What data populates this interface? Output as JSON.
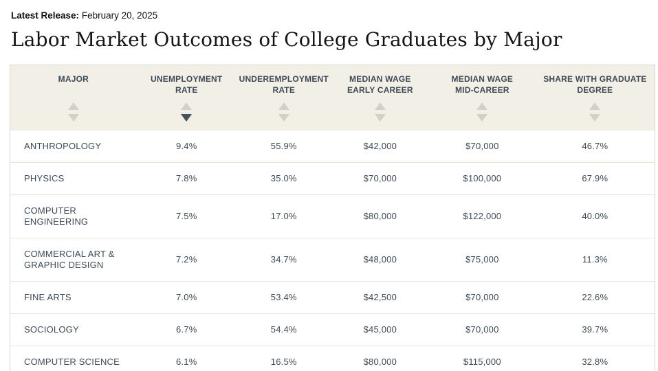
{
  "meta": {
    "latest_release_label": "Latest Release:",
    "latest_release_date": "February 20, 2025"
  },
  "page_title": "Labor Market Outcomes of College Graduates by Major",
  "table": {
    "columns": [
      {
        "label": "MAJOR",
        "sort": "none"
      },
      {
        "label": "UNEMPLOYMENT\nRATE",
        "sort": "desc"
      },
      {
        "label": "UNDEREMPLOYMENT\nRATE",
        "sort": "none"
      },
      {
        "label": "MEDIAN WAGE\nEARLY CAREER",
        "sort": "none"
      },
      {
        "label": "MEDIAN WAGE\nMID-CAREER",
        "sort": "none"
      },
      {
        "label": "SHARE WITH GRADUATE\nDEGREE",
        "sort": "none"
      }
    ],
    "rows": [
      [
        "ANTHROPOLOGY",
        "9.4%",
        "55.9%",
        "$42,000",
        "$70,000",
        "46.7%"
      ],
      [
        "PHYSICS",
        "7.8%",
        "35.0%",
        "$70,000",
        "$100,000",
        "67.9%"
      ],
      [
        "COMPUTER ENGINEERING",
        "7.5%",
        "17.0%",
        "$80,000",
        "$122,000",
        "40.0%"
      ],
      [
        "COMMERCIAL ART & GRAPHIC DESIGN",
        "7.2%",
        "34.7%",
        "$48,000",
        "$75,000",
        "11.3%"
      ],
      [
        "FINE ARTS",
        "7.0%",
        "53.4%",
        "$42,500",
        "$70,000",
        "22.6%"
      ],
      [
        "SOCIOLOGY",
        "6.7%",
        "54.4%",
        "$45,000",
        "$70,000",
        "39.7%"
      ],
      [
        "COMPUTER SCIENCE",
        "6.1%",
        "16.5%",
        "$80,000",
        "$115,000",
        "32.8%"
      ]
    ]
  },
  "colors": {
    "header_bg": "#f2efe7",
    "header_text": "#3e4a56",
    "row_text": "#3e4a56",
    "divider": "#e9e5da",
    "table_border": "#d8d6d0",
    "arrow_inactive": "#d3d1c7",
    "arrow_active": "#47535f"
  }
}
